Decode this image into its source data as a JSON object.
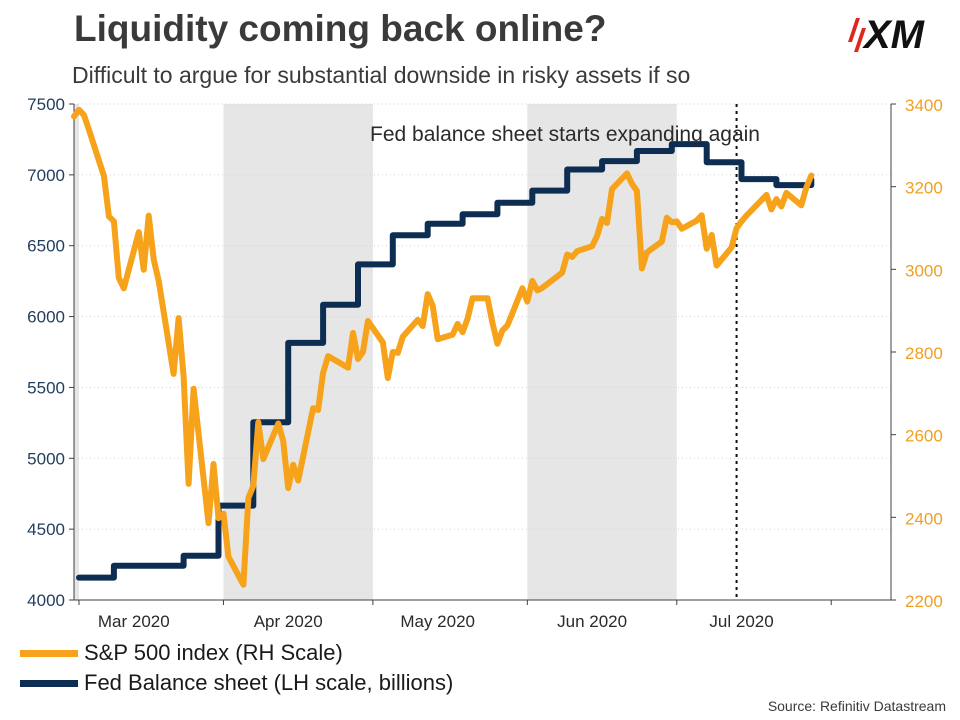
{
  "header": {
    "title": "Liquidity coming back online?",
    "subtitle": "Difficult to argue for substantial downside in risky assets if so",
    "logo_text": "XM"
  },
  "source": "Source: Refinitiv Datastream",
  "colors": {
    "sp500": "#f7a21b",
    "fed": "#0d2d52",
    "shade": "#e6e6e6",
    "left_axis_text": "#1f3d5c",
    "right_axis_text": "#f0a020",
    "axis": "#404040"
  },
  "chart_data": {
    "type": "line",
    "title": "Liquidity coming back online?",
    "subtitle": "Difficult to argue for substantial downside in risky assets if so",
    "annotation": "Fed balance sheet starts expanding again",
    "annotation_marker_date": "2020-06-30",
    "x_range": [
      "2020-02-18",
      "2020-07-31"
    ],
    "x_ticks": [
      {
        "label": "Mar 2020",
        "date": "2020-03-01",
        "boundary": "2020-02-19"
      },
      {
        "label": "Apr 2020",
        "date": "2020-04-01",
        "boundary": "2020-03-19"
      },
      {
        "label": "May 2020",
        "date": "2020-05-01",
        "boundary": "2020-04-18"
      },
      {
        "label": "Jun 2020",
        "date": "2020-06-01",
        "boundary": "2020-05-19"
      },
      {
        "label": "Jul 2020",
        "date": "2020-07-01",
        "boundary": "2020-06-18"
      },
      {
        "label": "",
        "date": "",
        "boundary": "2020-07-19"
      }
    ],
    "shaded_ranges": [
      [
        "2020-03-19",
        "2020-04-18"
      ],
      [
        "2020-05-19",
        "2020-06-18"
      ]
    ],
    "y_left": {
      "label": "",
      "ylim": [
        4000,
        7500
      ],
      "ticks": [
        4000,
        4500,
        5000,
        5500,
        6000,
        6500,
        7000,
        7500
      ]
    },
    "y_right": {
      "label": "",
      "ylim": [
        2200,
        3400
      ],
      "ticks": [
        2200,
        2400,
        2600,
        2800,
        3000,
        3200,
        3400
      ]
    },
    "series": [
      {
        "name": "S&P 500 index (RH Scale)",
        "axis": "right",
        "x": [
          "2020-02-18",
          "2020-02-19",
          "2020-02-20",
          "2020-02-21",
          "2020-02-24",
          "2020-02-25",
          "2020-02-26",
          "2020-02-27",
          "2020-02-28",
          "2020-03-02",
          "2020-03-03",
          "2020-03-04",
          "2020-03-05",
          "2020-03-06",
          "2020-03-09",
          "2020-03-10",
          "2020-03-11",
          "2020-03-12",
          "2020-03-13",
          "2020-03-16",
          "2020-03-17",
          "2020-03-18",
          "2020-03-19",
          "2020-03-20",
          "2020-03-23",
          "2020-03-24",
          "2020-03-25",
          "2020-03-26",
          "2020-03-27",
          "2020-03-30",
          "2020-03-31",
          "2020-04-01",
          "2020-04-02",
          "2020-04-03",
          "2020-04-06",
          "2020-04-07",
          "2020-04-08",
          "2020-04-09",
          "2020-04-13",
          "2020-04-14",
          "2020-04-15",
          "2020-04-16",
          "2020-04-17",
          "2020-04-20",
          "2020-04-21",
          "2020-04-22",
          "2020-04-23",
          "2020-04-24",
          "2020-04-27",
          "2020-04-28",
          "2020-04-29",
          "2020-04-30",
          "2020-05-01",
          "2020-05-04",
          "2020-05-05",
          "2020-05-06",
          "2020-05-07",
          "2020-05-08",
          "2020-05-11",
          "2020-05-12",
          "2020-05-13",
          "2020-05-14",
          "2020-05-15",
          "2020-05-18",
          "2020-05-19",
          "2020-05-20",
          "2020-05-21",
          "2020-05-22",
          "2020-05-26",
          "2020-05-27",
          "2020-05-28",
          "2020-05-29",
          "2020-06-01",
          "2020-06-02",
          "2020-06-03",
          "2020-06-04",
          "2020-06-05",
          "2020-06-08",
          "2020-06-09",
          "2020-06-10",
          "2020-06-11",
          "2020-06-12",
          "2020-06-15",
          "2020-06-16",
          "2020-06-17",
          "2020-06-18",
          "2020-06-19",
          "2020-06-22",
          "2020-06-23",
          "2020-06-24",
          "2020-06-25",
          "2020-06-26",
          "2020-06-29",
          "2020-06-30",
          "2020-07-01",
          "2020-07-02",
          "2020-07-06",
          "2020-07-07",
          "2020-07-08",
          "2020-07-09",
          "2020-07-10",
          "2020-07-13",
          "2020-07-14",
          "2020-07-15"
        ],
        "values": [
          3370,
          3386,
          3373,
          3338,
          3226,
          3128,
          3116,
          2979,
          2954,
          3090,
          2999,
          3130,
          3024,
          2972,
          2747,
          2882,
          2741,
          2481,
          2711,
          2386,
          2529,
          2398,
          2409,
          2305,
          2237,
          2447,
          2476,
          2630,
          2541,
          2627,
          2585,
          2471,
          2527,
          2489,
          2664,
          2660,
          2750,
          2790,
          2762,
          2846,
          2783,
          2800,
          2875,
          2823,
          2737,
          2800,
          2798,
          2837,
          2878,
          2863,
          2940,
          2912,
          2831,
          2842,
          2868,
          2848,
          2881,
          2930,
          2930,
          2870,
          2820,
          2852,
          2864,
          2954,
          2922,
          2972,
          2949,
          2955,
          2992,
          3036,
          3030,
          3044,
          3056,
          3081,
          3122,
          3112,
          3194,
          3232,
          3207,
          3190,
          3002,
          3041,
          3067,
          3125,
          3114,
          3116,
          3098,
          3118,
          3131,
          3050,
          3083,
          3009,
          3053,
          3100,
          3116,
          3130,
          3180,
          3145,
          3170,
          3152,
          3185,
          3155,
          3198,
          3227
        ]
      },
      {
        "name": "Fed Balance sheet (LH scale, billions)",
        "axis": "left",
        "x": [
          "2020-02-19",
          "2020-02-26",
          "2020-03-04",
          "2020-03-11",
          "2020-03-18",
          "2020-03-25",
          "2020-04-01",
          "2020-04-08",
          "2020-04-15",
          "2020-04-22",
          "2020-04-29",
          "2020-05-06",
          "2020-05-13",
          "2020-05-20",
          "2020-05-27",
          "2020-06-03",
          "2020-06-10",
          "2020-06-17",
          "2020-06-24",
          "2020-07-01",
          "2020-07-08",
          "2020-07-15"
        ],
        "values": [
          4158,
          4241,
          4241,
          4312,
          4666,
          5254,
          5814,
          6083,
          6368,
          6574,
          6655,
          6722,
          6803,
          6889,
          7038,
          7097,
          7168,
          7217,
          7089,
          6970,
          6928,
          6967
        ]
      }
    ]
  }
}
